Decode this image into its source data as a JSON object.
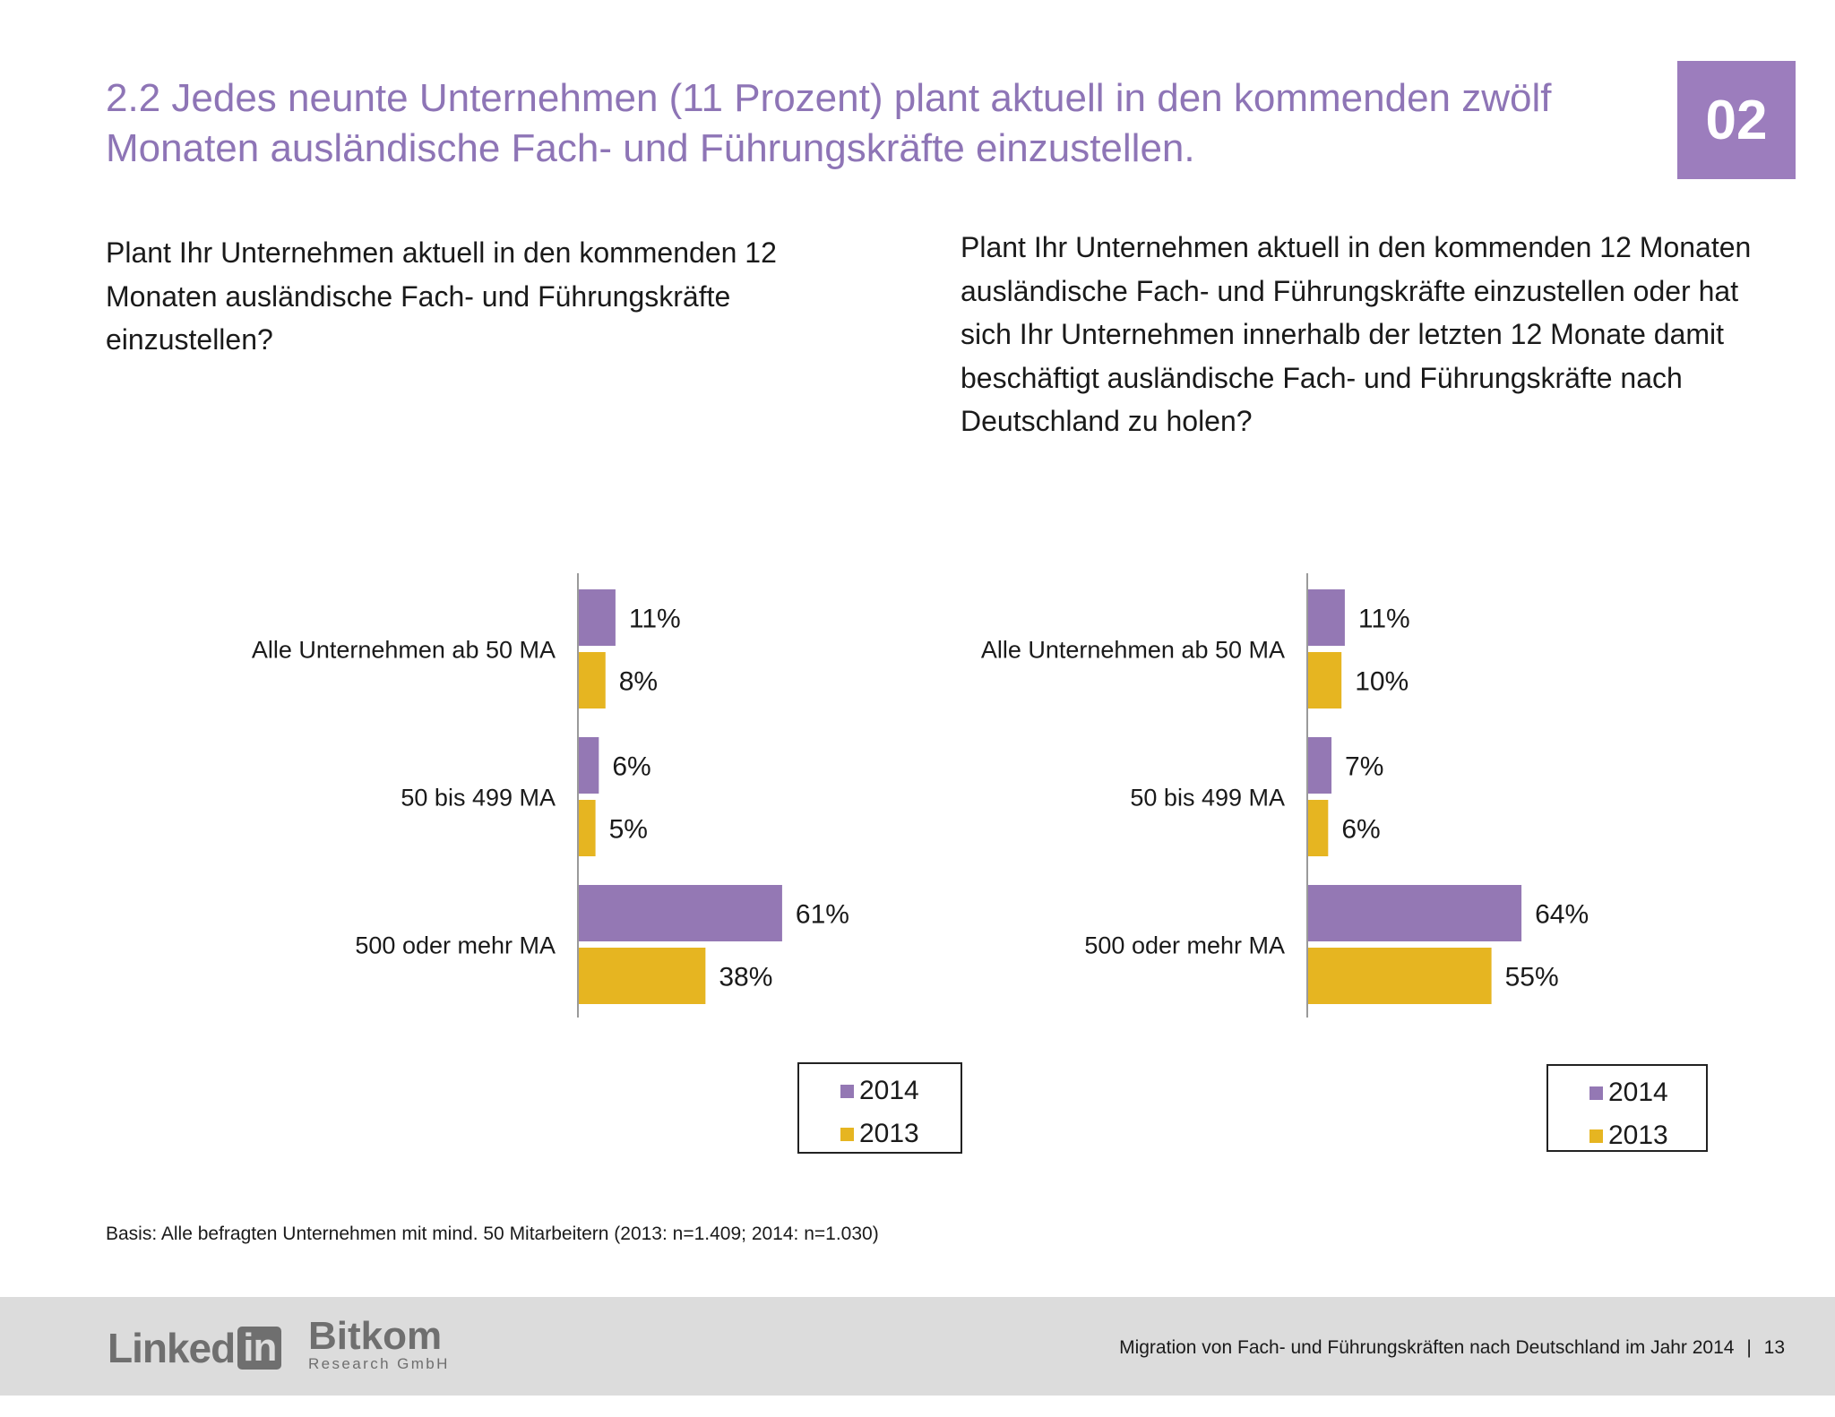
{
  "header": {
    "title": "2.2 Jedes neunte Unternehmen (11 Prozent) plant aktuell in den kommenden zwölf Monaten ausländische Fach- und Führungskräfte einzustellen.",
    "chapter": "02"
  },
  "questions": {
    "left": "Plant Ihr Unternehmen aktuell in den kommenden 12 Monaten ausländische Fach- und Führungskräfte einzustellen?",
    "right": "Plant Ihr Unternehmen aktuell in den kommenden 12 Monaten ausländische Fach- und Führungskräfte einzustellen oder hat sich Ihr Unternehmen innerhalb der letzten 12 Monate damit beschäftigt ausländische Fach- und Führungskräfte nach Deutschland zu holen?"
  },
  "colors": {
    "series_2014": "#9478b4",
    "series_2013": "#e6b521",
    "title": "#8e75b6",
    "badge": "#9c7dbd"
  },
  "legend": {
    "items": [
      "2014",
      "2013"
    ]
  },
  "chart_data": [
    {
      "type": "bar",
      "orientation": "horizontal",
      "categories": [
        "Alle Unternehmen ab 50 MA",
        "50 bis 499 MA",
        "500 oder mehr MA"
      ],
      "series": [
        {
          "name": "2014",
          "values": [
            11,
            6,
            61
          ],
          "labels": [
            "11%",
            "6%",
            "61%"
          ]
        },
        {
          "name": "2013",
          "values": [
            8,
            5,
            38
          ],
          "labels": [
            "8%",
            "5%",
            "38%"
          ]
        }
      ],
      "unit": "%",
      "legend_position": "bottom-right"
    },
    {
      "type": "bar",
      "orientation": "horizontal",
      "categories": [
        "Alle Unternehmen ab 50 MA",
        "50 bis 499 MA",
        "500 oder mehr MA"
      ],
      "series": [
        {
          "name": "2014",
          "values": [
            11,
            7,
            64
          ],
          "labels": [
            "11%",
            "7%",
            "64%"
          ]
        },
        {
          "name": "2013",
          "values": [
            10,
            6,
            55
          ],
          "labels": [
            "10%",
            "6%",
            "55%"
          ]
        }
      ],
      "unit": "%",
      "legend_position": "bottom-right"
    }
  ],
  "footer": {
    "basis": "Basis: Alle befragten Unternehmen mit mind. 50 Mitarbeitern (2013: n=1.409; 2014: n=1.030)",
    "report_title": "Migration von Fach- und Führungskräften nach Deutschland im Jahr 2014",
    "separator": "|",
    "page_number": "13",
    "logo_linkedin_text": "Linked",
    "logo_linkedin_in": "in",
    "logo_bitkom_name": "Bitkom",
    "logo_bitkom_sub": "Research GmbH"
  }
}
